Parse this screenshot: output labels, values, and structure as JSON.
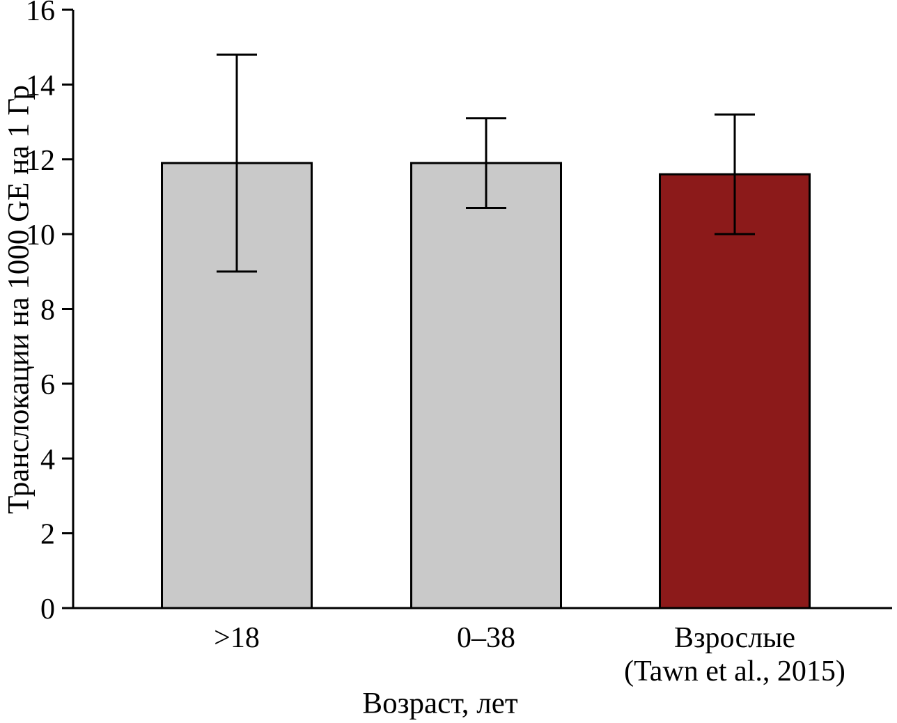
{
  "chart_data": {
    "type": "bar",
    "title": "",
    "xlabel": "Возраст, лет",
    "ylabel": "Транслокации  на 1000 GE на 1 Гр",
    "categories": [
      [
        ">18"
      ],
      [
        "0–38"
      ],
      [
        "Взрослые",
        "(Tawn et al., 2015)"
      ]
    ],
    "values": [
      11.9,
      11.9,
      11.6
    ],
    "errors": {
      "low": [
        9.0,
        10.7,
        10.0
      ],
      "high": [
        14.8,
        13.1,
        13.2
      ]
    },
    "bar_colors": [
      "#c9c9c9",
      "#c9c9c9",
      "#8c1a1a"
    ],
    "bar_edge_color": "#000000",
    "axis_color": "#000000",
    "background": "#ffffff",
    "ylim": [
      0,
      16
    ],
    "yticks": [
      0,
      2,
      4,
      6,
      8,
      10,
      12,
      14,
      16
    ],
    "grid": false,
    "legend_position": "none"
  }
}
